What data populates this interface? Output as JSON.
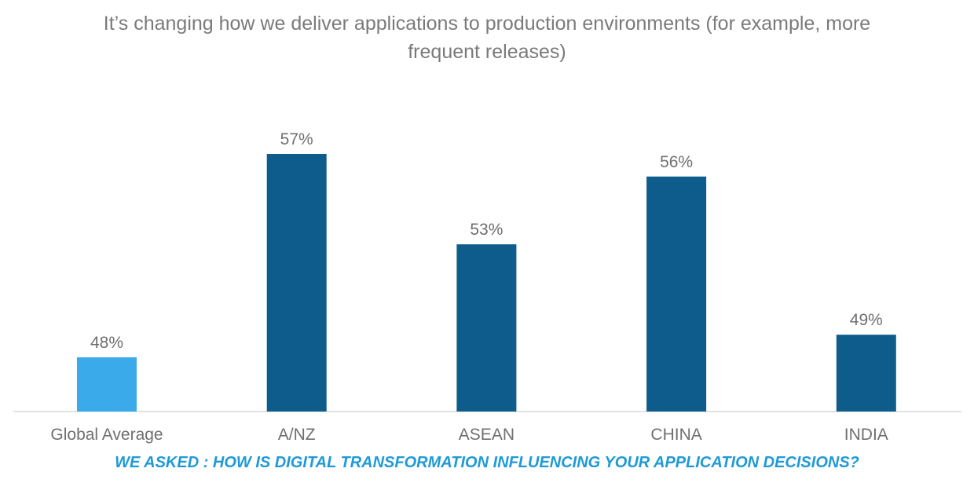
{
  "chart_data": {
    "type": "bar",
    "title": "It’s changing how we deliver applications to production environments (for example, more frequent releases)",
    "categories": [
      "Global Average",
      "A/NZ",
      "ASEAN",
      "CHINA",
      "INDIA"
    ],
    "values": [
      48,
      57,
      53,
      56,
      49
    ],
    "data_labels": [
      "48%",
      "57%",
      "53%",
      "56%",
      "49%"
    ],
    "colors": [
      "#3aaaea",
      "#0e5c8c",
      "#0e5c8c",
      "#0e5c8c",
      "#0e5c8c"
    ],
    "xlabel": "",
    "ylabel": "",
    "ylim": [
      45.6,
      57
    ],
    "grid": false,
    "legend": "none"
  },
  "footer": "WE ASKED : HOW IS DIGITAL TRANSFORMATION INFLUENCING YOUR APPLICATION DECISIONS?"
}
